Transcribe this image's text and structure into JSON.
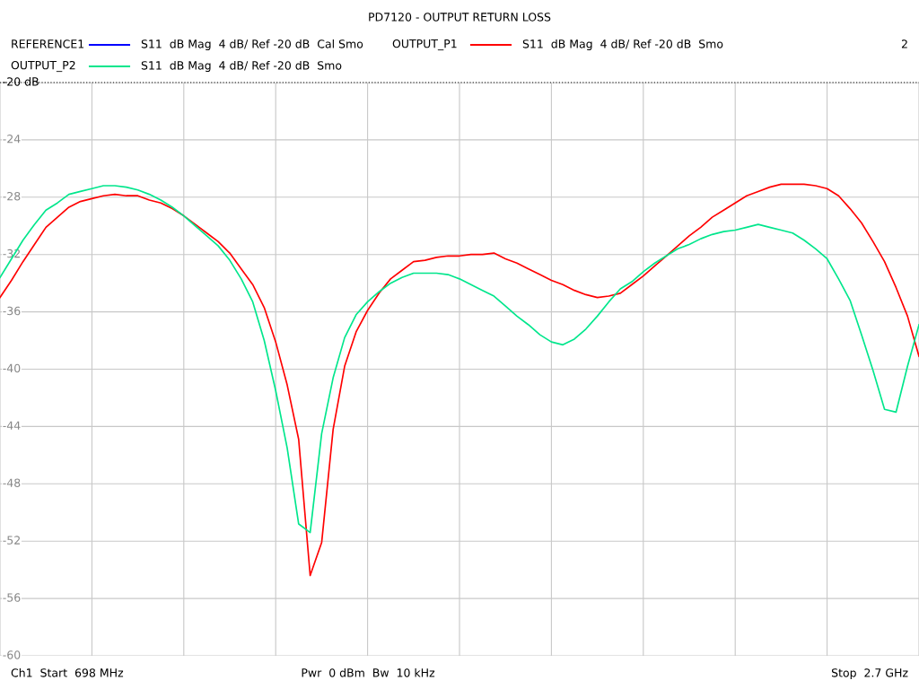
{
  "chart_data": {
    "type": "line",
    "title": "PD7120 - OUTPUT RETURN LOSS",
    "categories": [
      null,
      null,
      null,
      null,
      null,
      null,
      null,
      null,
      null,
      null,
      null,
      null,
      null,
      null,
      null,
      null,
      null,
      null,
      null,
      null,
      null,
      null,
      null,
      null,
      null,
      null,
      null,
      null,
      null,
      null,
      null,
      null,
      null,
      null,
      null,
      null,
      null,
      null,
      null,
      null,
      null,
      null,
      null,
      null,
      null,
      null,
      null,
      null,
      null,
      null,
      null,
      null,
      null,
      null,
      null,
      null,
      null,
      null,
      null,
      null,
      null,
      null,
      null,
      null,
      null,
      null,
      null,
      null,
      null,
      null,
      null,
      null,
      null,
      null,
      null,
      null,
      null,
      null,
      null,
      null,
      null
    ],
    "ylim": [
      -60,
      -20
    ],
    "yticks": [
      -60,
      -56,
      -52,
      -48,
      -44,
      -40,
      -36,
      -32,
      -28,
      -24,
      {
        "value": -20,
        "label": "-20 dB"
      }
    ],
    "grid": true,
    "legend": "top",
    "ref_lines": [
      {
        "axis": "y",
        "value": -20,
        "color": "#000000",
        "line_style": "dotted"
      }
    ],
    "series": [
      {
        "name": "REFERENCE1",
        "color": "#0000ff",
        "values": [
          null,
          null,
          null,
          null,
          null,
          null,
          null,
          null,
          null,
          null,
          null,
          null,
          null,
          null,
          null,
          null,
          null,
          null,
          null,
          null,
          null,
          null,
          null,
          null,
          null,
          null,
          null,
          null,
          null,
          null,
          null,
          null,
          null,
          null,
          null,
          null,
          null,
          null,
          null,
          null,
          null,
          null,
          null,
          null,
          null,
          null,
          null,
          null,
          null,
          null,
          null,
          null,
          null,
          null,
          null,
          null,
          null,
          null,
          null,
          null,
          null,
          null,
          null,
          null,
          null,
          null,
          null,
          null,
          null,
          null,
          null,
          null,
          null,
          null,
          null,
          null,
          null,
          null,
          null,
          null,
          null
        ]
      },
      {
        "name": "OUTPUT_P1",
        "color": "#ff0000",
        "values": [
          -35.0,
          -33.8,
          -32.5,
          -31.3,
          -30.1,
          -29.4,
          -28.7,
          -28.3,
          -28.1,
          -27.9,
          -27.8,
          -27.9,
          -27.9,
          -28.2,
          -28.4,
          -28.8,
          -29.3,
          -29.9,
          -30.5,
          -31.1,
          -31.9,
          -33.0,
          -34.1,
          -35.7,
          -38.1,
          -41.1,
          -44.9,
          -54.4,
          -52.1,
          -44.2,
          -39.8,
          -37.4,
          -35.9,
          -34.7,
          -33.7,
          -33.1,
          -32.5,
          -32.4,
          -32.2,
          -32.1,
          -32.1,
          -32.0,
          -32.0,
          -31.9,
          -32.3,
          -32.6,
          -33.0,
          -33.4,
          -33.8,
          -34.1,
          -34.5,
          -34.8,
          -35.0,
          -34.9,
          -34.7,
          -34.1,
          -33.5,
          -32.8,
          -32.1,
          -31.4,
          -30.7,
          -30.1,
          -29.4,
          -28.9,
          -28.4,
          -27.9,
          -27.6,
          -27.3,
          -27.1,
          -27.1,
          -27.1,
          -27.2,
          -27.4,
          -27.9,
          -28.8,
          -29.8,
          -31.1,
          -32.5,
          -34.3,
          -36.3,
          -39.1
        ]
      },
      {
        "name": "OUTPUT_P2",
        "color": "#00e68c",
        "values": [
          -33.6,
          -32.3,
          -31.0,
          -29.9,
          -28.9,
          -28.4,
          -27.8,
          -27.6,
          -27.4,
          -27.2,
          -27.2,
          -27.3,
          -27.5,
          -27.8,
          -28.2,
          -28.7,
          -29.3,
          -30.0,
          -30.7,
          -31.4,
          -32.4,
          -33.7,
          -35.3,
          -38.0,
          -41.5,
          -45.5,
          -50.8,
          -51.4,
          -44.5,
          -40.6,
          -37.8,
          -36.2,
          -35.3,
          -34.6,
          -34.0,
          -33.6,
          -33.3,
          -33.3,
          -33.3,
          -33.4,
          -33.7,
          -34.1,
          -34.5,
          -34.9,
          -35.6,
          -36.3,
          -36.9,
          -37.6,
          -38.1,
          -38.3,
          -37.9,
          -37.2,
          -36.3,
          -35.3,
          -34.4,
          -33.9,
          -33.2,
          -32.6,
          -32.1,
          -31.6,
          -31.3,
          -30.9,
          -30.6,
          -30.4,
          -30.3,
          -30.1,
          -29.9,
          -30.1,
          -30.3,
          -30.5,
          -31.0,
          -31.6,
          -32.3,
          -33.7,
          -35.2,
          -37.6,
          -40.1,
          -42.8,
          -43.0,
          -39.8,
          -36.9
        ]
      }
    ],
    "annotations": [
      "S11  dB Mag  4 dB/ Ref -20 dB  Cal Smo",
      "S11  dB Mag  4 dB/ Ref -20 dB  Smo",
      "S11  dB Mag  4 dB/ Ref -20 dB  Smo",
      "2",
      "Ch1  Start  698 MHz",
      "Pwr  0 dBm  Bw  10 kHz",
      "Stop  2.7 GHz"
    ]
  }
}
